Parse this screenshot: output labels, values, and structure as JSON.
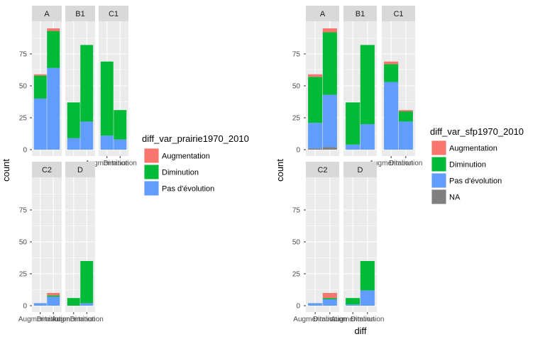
{
  "colors": {
    "Augmentation": "#F8766D",
    "Diminution": "#00BA38",
    "Pas d'évolution": "#619CFF",
    "NA": "#7F7F7F",
    "panel_bg": "#EBEBEB",
    "strip_bg": "#D9D9D9",
    "grid": "#FFFFFF"
  },
  "chart_data": [
    {
      "type": "bar",
      "stacked": true,
      "faceted": true,
      "xlabel": "",
      "ylabel": "count",
      "ylim": [
        0,
        100
      ],
      "yticks": [
        0,
        25,
        50,
        75
      ],
      "grid": true,
      "legend": {
        "placement": "right",
        "title": "diff_var_prairie1970_2010",
        "entries": [
          "Augmentation",
          "Diminution",
          "Pas d'évolution"
        ]
      },
      "panels": [
        {
          "label": "A",
          "categories": [
            "Augmentation",
            "Diminution"
          ],
          "series": [
            {
              "name": "Pas d'évolution",
              "values": [
                40,
                64
              ]
            },
            {
              "name": "Diminution",
              "values": [
                18,
                29
              ]
            },
            {
              "name": "Augmentation",
              "values": [
                1,
                2
              ]
            }
          ]
        },
        {
          "label": "B1",
          "categories": [
            "Augmentation",
            "Diminution"
          ],
          "series": [
            {
              "name": "Pas d'évolution",
              "values": [
                9,
                22
              ]
            },
            {
              "name": "Diminution",
              "values": [
                28,
                60
              ]
            }
          ]
        },
        {
          "label": "C1",
          "categories": [
            "Augmentation",
            "Diminution"
          ],
          "series": [
            {
              "name": "Pas d'évolution",
              "values": [
                11,
                8
              ]
            },
            {
              "name": "Diminution",
              "values": [
                58,
                23
              ]
            }
          ]
        },
        {
          "label": "C2",
          "categories": [
            "Augmentation",
            "Diminution"
          ],
          "series": [
            {
              "name": "Pas d'évolution",
              "values": [
                2,
                7
              ]
            },
            {
              "name": "Diminution",
              "values": [
                0,
                1
              ]
            },
            {
              "name": "Augmentation",
              "values": [
                0,
                2
              ]
            }
          ]
        },
        {
          "label": "D",
          "categories": [
            "Augmentation",
            "Diminution"
          ],
          "series": [
            {
              "name": "Pas d'évolution",
              "values": [
                0,
                2
              ]
            },
            {
              "name": "Diminution",
              "values": [
                6,
                33
              ]
            }
          ]
        }
      ]
    },
    {
      "type": "bar",
      "stacked": true,
      "faceted": true,
      "xlabel": "diff",
      "ylabel": "count",
      "ylim": [
        0,
        100
      ],
      "yticks": [
        0,
        25,
        50,
        75
      ],
      "grid": true,
      "legend": {
        "placement": "right",
        "title": "diff_var_sfp1970_2010",
        "entries": [
          "Augmentation",
          "Diminution",
          "Pas d'évolution",
          "NA"
        ]
      },
      "panels": [
        {
          "label": "A",
          "categories": [
            "Augmentation",
            "Diminution"
          ],
          "series": [
            {
              "name": "NA",
              "values": [
                1,
                2
              ]
            },
            {
              "name": "Pas d'évolution",
              "values": [
                20,
                41
              ]
            },
            {
              "name": "Diminution",
              "values": [
                36,
                49
              ]
            },
            {
              "name": "Augmentation",
              "values": [
                2,
                3
              ]
            }
          ]
        },
        {
          "label": "B1",
          "categories": [
            "Augmentation",
            "Diminution"
          ],
          "series": [
            {
              "name": "Pas d'évolution",
              "values": [
                4,
                20
              ]
            },
            {
              "name": "Diminution",
              "values": [
                33,
                62
              ]
            }
          ]
        },
        {
          "label": "C1",
          "categories": [
            "Augmentation",
            "Diminution"
          ],
          "series": [
            {
              "name": "Pas d'évolution",
              "values": [
                53,
                22
              ]
            },
            {
              "name": "Diminution",
              "values": [
                14,
                8
              ]
            },
            {
              "name": "Augmentation",
              "values": [
                2,
                1
              ]
            }
          ]
        },
        {
          "label": "C2",
          "categories": [
            "Augmentation",
            "Diminution"
          ],
          "series": [
            {
              "name": "Pas d'évolution",
              "values": [
                2,
                5
              ]
            },
            {
              "name": "Diminution",
              "values": [
                0,
                1
              ]
            },
            {
              "name": "Augmentation",
              "values": [
                0,
                4
              ]
            }
          ]
        },
        {
          "label": "D",
          "categories": [
            "Augmentation",
            "Diminution"
          ],
          "series": [
            {
              "name": "Pas d'évolution",
              "values": [
                1,
                12
              ]
            },
            {
              "name": "Diminution",
              "values": [
                5,
                23
              ]
            }
          ]
        }
      ]
    }
  ]
}
